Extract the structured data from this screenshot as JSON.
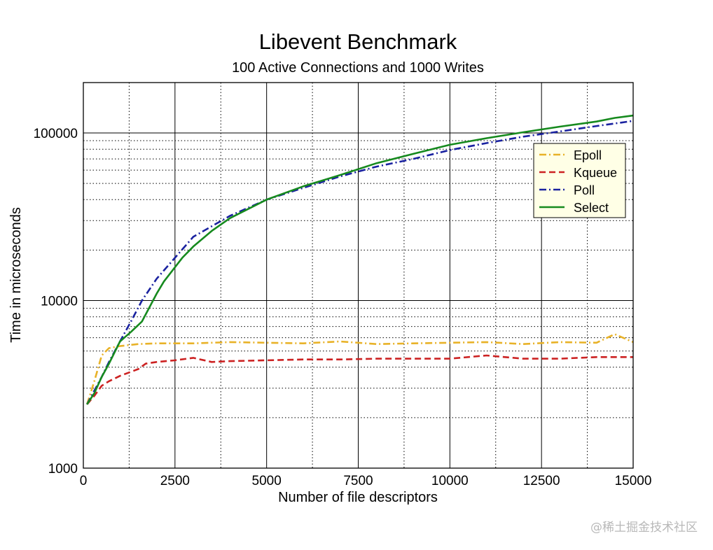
{
  "chart_data": {
    "type": "line",
    "title": "Libevent Benchmark",
    "subtitle": "100 Active Connections and 1000 Writes",
    "xlabel": "Number of file descriptors",
    "ylabel": "Time in microseconds",
    "xlim": [
      0,
      15000
    ],
    "ylim": [
      1000,
      200000
    ],
    "yscale": "log",
    "grid": true,
    "legend_position": "top-right",
    "x_ticks": [
      {
        "value": 0,
        "label": "0"
      },
      {
        "value": 2500,
        "label": "2500"
      },
      {
        "value": 5000,
        "label": "5000"
      },
      {
        "value": 7500,
        "label": "7500"
      },
      {
        "value": 10000,
        "label": "10000"
      },
      {
        "value": 12500,
        "label": "12500"
      },
      {
        "value": 15000,
        "label": "15000"
      }
    ],
    "y_ticks": [
      {
        "value": 1000,
        "label": "1000"
      },
      {
        "value": 10000,
        "label": "10000"
      },
      {
        "value": 100000,
        "label": "100000"
      }
    ],
    "series": [
      {
        "name": "Epoll",
        "color": "#e8b228",
        "dash": "dashdot",
        "points": [
          [
            100,
            2400
          ],
          [
            300,
            3300
          ],
          [
            500,
            4700
          ],
          [
            700,
            5200
          ],
          [
            1000,
            5350
          ],
          [
            1500,
            5500
          ],
          [
            2000,
            5550
          ],
          [
            3000,
            5550
          ],
          [
            4000,
            5650
          ],
          [
            5000,
            5600
          ],
          [
            6000,
            5550
          ],
          [
            7000,
            5700
          ],
          [
            8000,
            5500
          ],
          [
            9000,
            5550
          ],
          [
            10000,
            5600
          ],
          [
            11000,
            5650
          ],
          [
            12000,
            5500
          ],
          [
            13000,
            5650
          ],
          [
            14000,
            5600
          ],
          [
            14500,
            6300
          ],
          [
            15000,
            5650
          ]
        ]
      },
      {
        "name": "Kqueue",
        "color": "#cc2222",
        "dash": "dashed",
        "points": [
          [
            100,
            2400
          ],
          [
            300,
            2700
          ],
          [
            500,
            3100
          ],
          [
            700,
            3300
          ],
          [
            1000,
            3550
          ],
          [
            1500,
            3900
          ],
          [
            1700,
            4200
          ],
          [
            2000,
            4300
          ],
          [
            2500,
            4400
          ],
          [
            3000,
            4550
          ],
          [
            3500,
            4300
          ],
          [
            4000,
            4350
          ],
          [
            5000,
            4400
          ],
          [
            6000,
            4450
          ],
          [
            7000,
            4450
          ],
          [
            8000,
            4500
          ],
          [
            9000,
            4500
          ],
          [
            10000,
            4500
          ],
          [
            11000,
            4700
          ],
          [
            12000,
            4500
          ],
          [
            13000,
            4500
          ],
          [
            14000,
            4600
          ],
          [
            15000,
            4600
          ]
        ]
      },
      {
        "name": "Poll",
        "color": "#1a22a0",
        "dash": "dashdot",
        "points": [
          [
            100,
            2400
          ],
          [
            300,
            2900
          ],
          [
            500,
            3500
          ],
          [
            700,
            4300
          ],
          [
            1000,
            5700
          ],
          [
            1300,
            7500
          ],
          [
            1600,
            10000
          ],
          [
            2000,
            13500
          ],
          [
            2500,
            18000
          ],
          [
            3000,
            24000
          ],
          [
            4000,
            32000
          ],
          [
            5000,
            40000
          ],
          [
            6000,
            47000
          ],
          [
            7000,
            55000
          ],
          [
            8000,
            63000
          ],
          [
            9000,
            70000
          ],
          [
            10000,
            79000
          ],
          [
            11000,
            87000
          ],
          [
            12000,
            95000
          ],
          [
            13000,
            102000
          ],
          [
            14000,
            110000
          ],
          [
            15000,
            118000
          ]
        ]
      },
      {
        "name": "Select",
        "color": "#168a1e",
        "dash": "solid",
        "points": [
          [
            100,
            2400
          ],
          [
            300,
            2800
          ],
          [
            500,
            3500
          ],
          [
            700,
            4200
          ],
          [
            1000,
            5700
          ],
          [
            1300,
            6500
          ],
          [
            1600,
            7500
          ],
          [
            2000,
            11000
          ],
          [
            2200,
            13000
          ],
          [
            2700,
            18000
          ],
          [
            3000,
            21000
          ],
          [
            3500,
            26000
          ],
          [
            4000,
            31000
          ],
          [
            5000,
            40000
          ],
          [
            6000,
            48000
          ],
          [
            7000,
            56000
          ],
          [
            8000,
            66000
          ],
          [
            9000,
            75000
          ],
          [
            10000,
            85000
          ],
          [
            11000,
            93000
          ],
          [
            12000,
            101000
          ],
          [
            13000,
            109000
          ],
          [
            14000,
            117000
          ],
          [
            14500,
            123000
          ],
          [
            15000,
            127000
          ]
        ]
      }
    ]
  }
}
